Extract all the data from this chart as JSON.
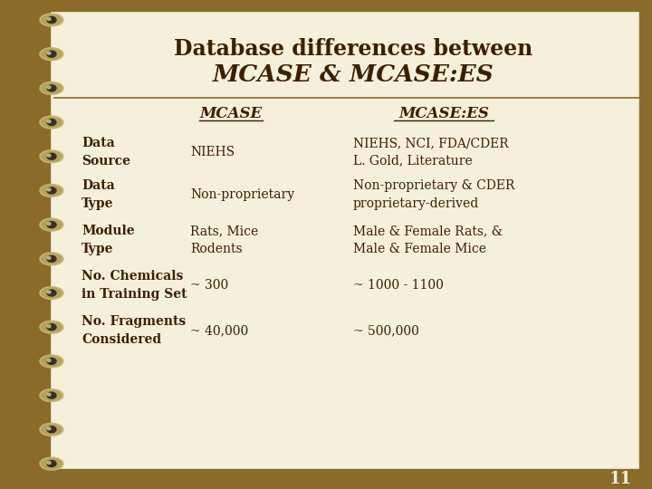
{
  "title_line1": "Database differences between",
  "title_line2": "MCASE & MCASE:ES",
  "col_headers": [
    "MCASE",
    "MCASE:ES"
  ],
  "rows": [
    {
      "label": "Data\nSource",
      "mcase": "NIEHS",
      "mcase_es": "NIEHS, NCI, FDA/CDER\nL. Gold, Literature"
    },
    {
      "label": "Data\nType",
      "mcase": "Non-proprietary",
      "mcase_es": "Non-proprietary & CDER\nproprietary-derived"
    },
    {
      "label": "Module\nType",
      "mcase": "Rats, Mice\nRodents",
      "mcase_es": "Male & Female Rats, &\nMale & Female Mice"
    },
    {
      "label": "No. Chemicals\nin Training Set",
      "mcase": "~ 300",
      "mcase_es": "~ 1000 - 1100"
    },
    {
      "label": "No. Fragments\nConsidered",
      "mcase": "~ 40,000",
      "mcase_es": "~ 500,000"
    }
  ],
  "bg_color": "#f5f0dc",
  "left_bar_color": "#8B6B2A",
  "bottom_bar_color": "#8B6B2A",
  "text_color": "#3b2000",
  "header_color": "#3b2000",
  "title_color": "#3b2000",
  "slide_number": "11",
  "separator_color": "#8B6B2A",
  "left_bar_width": 55,
  "bottom_bar_height": 22,
  "spiral_color_outer": "#aaa090",
  "spiral_color_inner": "#d0c8a0",
  "spiral_color_hole": "#555040",
  "n_spirals": 14
}
